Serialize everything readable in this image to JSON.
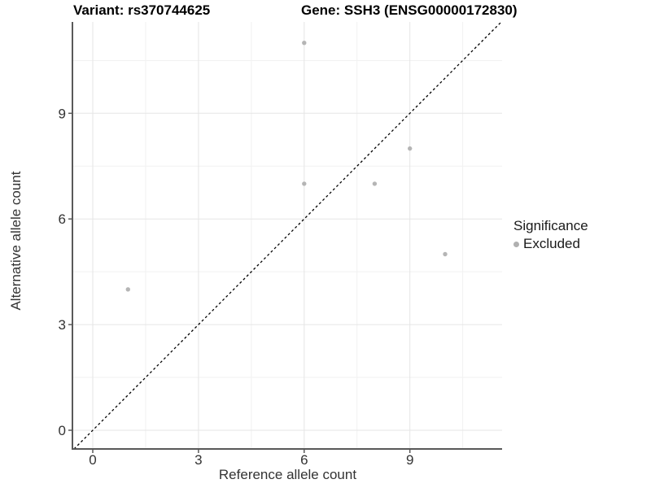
{
  "title_left": "Variant: rs370744625",
  "title_right": "Gene: SSH3 (ENSG00000172830)",
  "chart_data": {
    "type": "scatter",
    "title": "Variant: rs370744625 — Gene: SSH3 (ENSG00000172830)",
    "xlabel": "Reference allele count",
    "ylabel": "Alternative allele count",
    "xlim": [
      -0.55,
      11.62
    ],
    "ylim": [
      -0.55,
      11.59
    ],
    "x_major_ticks": [
      0,
      3,
      6,
      9
    ],
    "y_major_ticks": [
      0,
      3,
      6,
      9
    ],
    "x_minor_gridlines": [
      1.5,
      4.5,
      7.5,
      10.5
    ],
    "y_minor_gridlines": [
      1.5,
      4.5,
      7.5,
      10.5
    ],
    "grid": true,
    "legend_position": "right",
    "series": [
      {
        "name": "Excluded",
        "color": "#b5b5b5",
        "points": [
          [
            1,
            4
          ],
          [
            6,
            7
          ],
          [
            6,
            11
          ],
          [
            8,
            7
          ],
          [
            9,
            8
          ],
          [
            10,
            5
          ]
        ]
      }
    ],
    "reference_line": {
      "type": "identity",
      "style": "dashed",
      "color": "#000000"
    },
    "legend": {
      "title": "Significance",
      "items": [
        {
          "label": "Excluded",
          "color": "#b0b0b0"
        }
      ]
    },
    "colors": {
      "grid_major": "#e5e5e5",
      "grid_minor": "#f1f1f1",
      "axis_line": "#595959",
      "tick_label": "#333333",
      "point": "#b5b5b5"
    }
  }
}
